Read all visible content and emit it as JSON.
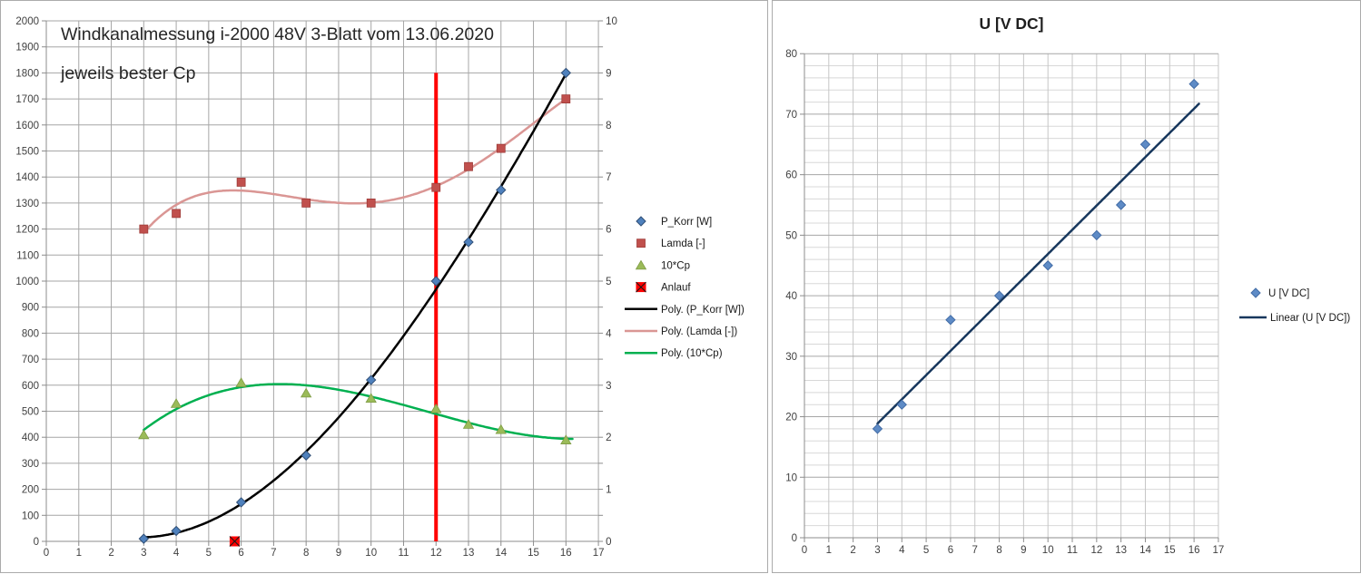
{
  "styles": {
    "background": "#FFFFFF",
    "panel_border": "#ABABAB",
    "grid_color": "#A6A6A6",
    "grid_minor_color": "#D8D8D8",
    "grid_vertical_color_right_chart": "#C6C6C6",
    "axis_color": "#8C8C8C",
    "label_color": "#404040",
    "legend_text_color": "#1A1A1A"
  },
  "chart_data": [
    {
      "type": "scatter",
      "title": "Windkanalmessung i-2000 48V 3-Blatt vom 13.06.2020",
      "subtitle": "jeweils bester Cp",
      "grid": true,
      "legend_position": "right",
      "x_axis": {
        "min": 0,
        "max": 17,
        "step": 1,
        "tick_labels": [
          0,
          1,
          2,
          3,
          4,
          5,
          6,
          7,
          8,
          9,
          10,
          11,
          12,
          13,
          14,
          15,
          16,
          17
        ]
      },
      "y_axis_left": {
        "min": 0,
        "max": 2000,
        "step": 100,
        "tick_labels": [
          0,
          100,
          200,
          300,
          400,
          500,
          600,
          700,
          800,
          900,
          1000,
          1100,
          1200,
          1300,
          1400,
          1500,
          1600,
          1700,
          1800,
          1900,
          2000
        ]
      },
      "y_axis_right": {
        "min": 0,
        "max": 10,
        "step": 1,
        "tick_labels": [
          0,
          1,
          2,
          3,
          4,
          5,
          6,
          7,
          8,
          9,
          10
        ]
      },
      "series": [
        {
          "name": "P_Korr [W]",
          "axis": "left",
          "marker": "diamond",
          "color": "#4F81BD",
          "edge_color": "#2F4E75",
          "x": [
            3,
            4,
            6,
            8,
            10,
            12,
            13,
            14,
            16
          ],
          "y": [
            10,
            40,
            150,
            330,
            620,
            1000,
            1150,
            1350,
            1800
          ]
        },
        {
          "name": "Lamda [-]",
          "axis": "right",
          "marker": "square",
          "color": "#C0504D",
          "edge_color": "#9E3B38",
          "x": [
            3,
            4,
            6,
            8,
            10,
            12,
            13,
            14,
            16
          ],
          "y": [
            6.0,
            6.3,
            6.9,
            6.5,
            6.5,
            6.8,
            7.2,
            7.55,
            8.5
          ]
        },
        {
          "name": "10*Cp",
          "axis": "right",
          "marker": "triangle",
          "color": "#9BBB59",
          "edge_color": "#7E9B44",
          "x": [
            3,
            4,
            6,
            8,
            10,
            12,
            13,
            14,
            16
          ],
          "y": [
            2.05,
            2.65,
            3.05,
            2.85,
            2.75,
            2.55,
            2.25,
            2.15,
            1.95
          ]
        },
        {
          "name": "Anlauf",
          "axis": "right",
          "marker": "x-square",
          "color": "#FF0000",
          "edge_color": "#1A1A1A",
          "x": [
            5.8
          ],
          "y": [
            0
          ]
        }
      ],
      "trendlines": [
        {
          "name": "Poly. (P_Korr [W])",
          "series": "P_Korr [W]",
          "type": "polynomial",
          "degree": 3,
          "color": "#000000",
          "x_range": [
            3,
            16
          ]
        },
        {
          "name": "Poly. (Lamda [-])",
          "series": "Lamda [-]",
          "type": "polynomial",
          "degree": 4,
          "color": "#DA9694",
          "x_range": [
            3,
            16.05
          ]
        },
        {
          "name": "Poly. (10*Cp)",
          "series": "10*Cp",
          "type": "polynomial",
          "degree": 3,
          "color": "#00B050",
          "x_range": [
            3,
            16.2
          ]
        }
      ],
      "marker_line": {
        "x": 12,
        "from_y": 0,
        "to_y": 1800,
        "axis": "left",
        "color": "#FF0000"
      },
      "legend": [
        "P_Korr [W]",
        "Lamda [-]",
        "10*Cp",
        "Anlauf",
        "Poly. (P_Korr [W])",
        "Poly. (Lamda [-])",
        "Poly. (10*Cp)"
      ]
    },
    {
      "type": "scatter",
      "title": "U [V DC]",
      "grid": true,
      "legend_position": "right",
      "x_axis": {
        "min": 0,
        "max": 17,
        "step": 1,
        "tick_labels": [
          0,
          1,
          2,
          3,
          4,
          5,
          6,
          7,
          8,
          9,
          10,
          11,
          12,
          13,
          14,
          15,
          16,
          17
        ]
      },
      "y_axis": {
        "min": 0,
        "max": 80,
        "step": 10,
        "minor_step": 2,
        "tick_labels": [
          0,
          10,
          20,
          30,
          40,
          50,
          60,
          70,
          80
        ]
      },
      "series": [
        {
          "name": "U [V DC]",
          "axis": "left",
          "marker": "diamond",
          "color": "#5E8BC6",
          "edge_color": "#426CA6",
          "x": [
            3,
            4,
            6,
            8,
            10,
            12,
            13,
            14,
            16
          ],
          "y": [
            18,
            22,
            36,
            40,
            45,
            50,
            55,
            65,
            75
          ]
        }
      ],
      "trendlines": [
        {
          "name": "Linear (U [V DC])",
          "series": "U [V DC]",
          "type": "linear",
          "degree": 1,
          "color": "#17375D",
          "x_range": [
            3,
            16.2
          ]
        }
      ],
      "legend": [
        "U [V DC]",
        "Linear (U [V DC])"
      ]
    }
  ]
}
